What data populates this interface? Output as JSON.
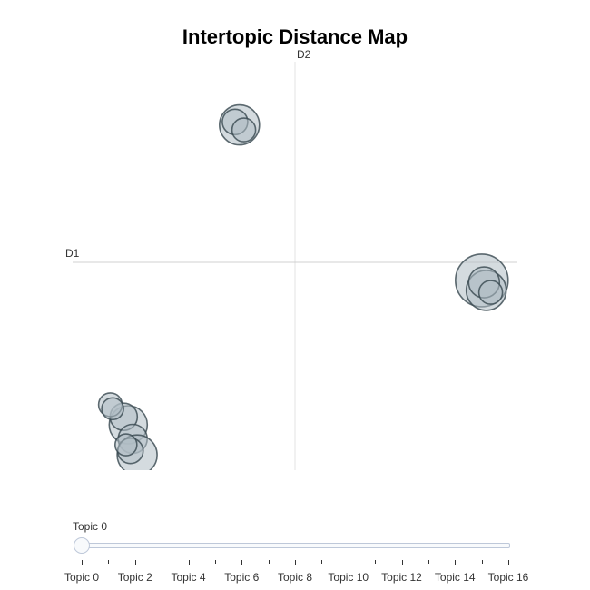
{
  "chart_data": {
    "type": "scatter",
    "title": "Intertopic Distance Map",
    "x_axis_label": "D1",
    "y_axis_label": "D2",
    "xlim": [
      -10,
      10
    ],
    "ylim": [
      -10,
      10
    ],
    "grid": false,
    "points": [
      {
        "x": -2.5,
        "y": 6.85,
        "size": 22
      },
      {
        "x": -2.7,
        "y": 7.0,
        "size": 14
      },
      {
        "x": -2.3,
        "y": 6.6,
        "size": 13
      },
      {
        "x": 8.4,
        "y": -0.9,
        "size": 29
      },
      {
        "x": 8.6,
        "y": -1.4,
        "size": 22
      },
      {
        "x": 8.5,
        "y": -1.0,
        "size": 17
      },
      {
        "x": 8.8,
        "y": -1.5,
        "size": 13
      },
      {
        "x": -7.5,
        "y": -8.1,
        "size": 21
      },
      {
        "x": -7.7,
        "y": -7.7,
        "size": 15
      },
      {
        "x": -8.3,
        "y": -7.1,
        "size": 13
      },
      {
        "x": -8.2,
        "y": -7.3,
        "size": 12
      },
      {
        "x": -7.3,
        "y": -8.8,
        "size": 16
      },
      {
        "x": -7.1,
        "y": -9.6,
        "size": 22
      },
      {
        "x": -7.4,
        "y": -9.4,
        "size": 14
      },
      {
        "x": -7.6,
        "y": -9.1,
        "size": 12
      }
    ]
  },
  "slider": {
    "current_label": "Topic 0",
    "value": 0,
    "min": 0,
    "max": 16,
    "tick_labels": [
      "Topic 0",
      "Topic 2",
      "Topic 4",
      "Topic 6",
      "Topic 8",
      "Topic 10",
      "Topic 12",
      "Topic 14",
      "Topic 16"
    ]
  },
  "colors": {
    "bubble_fill": "#b0bec5",
    "bubble_stroke": "#37474f",
    "axis_line": "#d9d9d9",
    "slider_border": "#bec8d9"
  }
}
